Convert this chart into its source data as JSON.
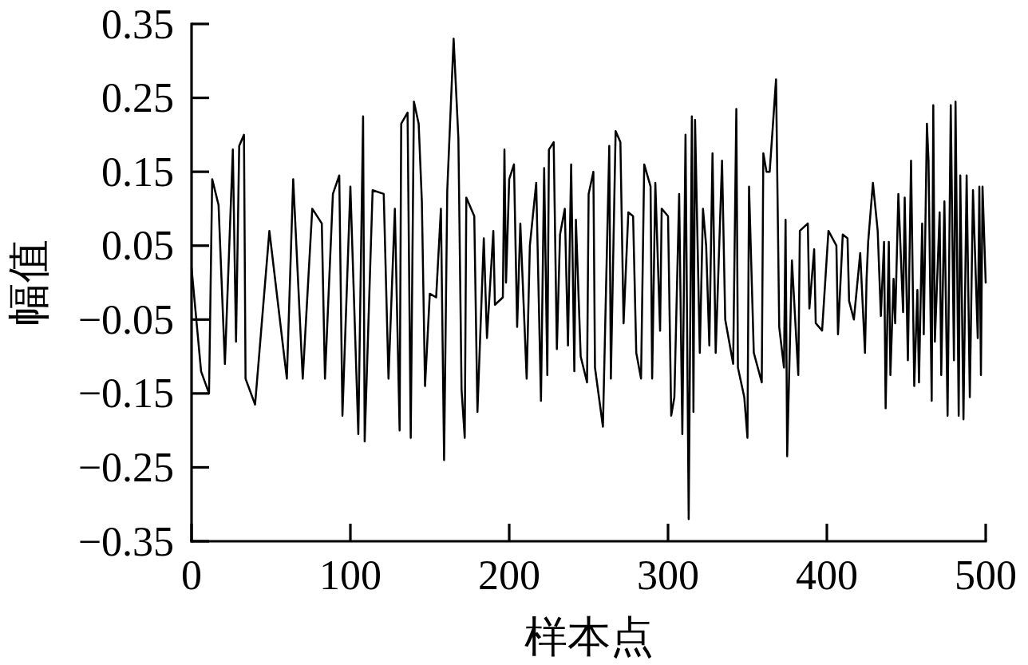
{
  "chart_data": {
    "type": "line",
    "xlabel": "样本点",
    "ylabel": "幅值",
    "color": "#000000",
    "line_style": "solid",
    "xlim": [
      0,
      500
    ],
    "ylim": [
      -0.35,
      0.35
    ],
    "xticks": [
      0,
      100,
      200,
      300,
      400,
      500
    ],
    "yticks": [
      -0.35,
      -0.25,
      -0.15,
      -0.05,
      0.05,
      0.15,
      0.25,
      0.35
    ],
    "x": [
      0,
      6,
      11,
      13,
      17,
      21,
      26,
      28,
      30,
      33,
      34,
      40,
      49,
      60,
      64,
      70,
      76,
      82,
      84,
      89,
      93,
      95,
      100,
      105,
      108,
      109,
      114,
      121,
      124,
      128,
      131,
      132,
      136,
      138,
      140,
      143,
      145,
      147,
      150,
      154,
      157,
      159,
      161,
      165,
      168,
      170,
      172,
      173,
      178,
      180,
      184,
      186,
      190,
      191,
      196,
      197,
      198,
      200,
      203,
      205,
      207,
      211,
      213,
      217,
      220,
      222,
      224,
      225,
      228,
      230,
      232,
      235,
      237,
      239,
      241,
      242,
      245,
      249,
      250,
      253,
      254,
      259,
      263,
      264,
      267,
      270,
      272,
      275,
      278,
      280,
      283,
      285,
      289,
      290,
      292,
      295,
      296,
      300,
      302,
      304,
      307,
      309,
      311,
      313,
      315,
      316,
      317,
      320,
      322,
      324,
      326,
      328,
      330,
      334,
      336,
      341,
      343,
      344,
      348,
      350,
      351,
      354,
      359,
      360,
      362,
      364,
      368,
      370,
      373,
      374,
      375,
      378,
      382,
      383,
      388,
      389,
      392,
      393,
      397,
      401,
      406,
      407,
      410,
      413,
      414,
      417,
      421,
      424,
      425,
      426,
      429,
      432,
      434,
      436,
      437,
      439,
      440,
      442,
      443,
      445,
      448,
      449,
      451,
      453,
      455,
      457,
      458,
      460,
      461,
      463,
      464,
      466,
      467,
      468,
      471,
      472,
      474,
      476,
      478,
      480,
      481,
      483,
      484,
      486,
      488,
      490,
      492,
      495,
      496,
      497,
      498,
      500
    ],
    "values": [
      0.02,
      -0.12,
      -0.15,
      0.14,
      0.105,
      -0.11,
      0.18,
      -0.08,
      0.185,
      0.2,
      -0.13,
      -0.165,
      0.07,
      -0.13,
      0.14,
      -0.13,
      0.1,
      0.08,
      -0.13,
      0.12,
      0.145,
      -0.18,
      0.13,
      -0.205,
      0.225,
      -0.215,
      0.125,
      0.12,
      -0.13,
      0.1,
      -0.2,
      0.215,
      0.23,
      -0.21,
      0.245,
      0.215,
      0.11,
      -0.14,
      -0.015,
      -0.02,
      0.1,
      -0.24,
      0.125,
      0.33,
      0.195,
      -0.145,
      -0.21,
      0.115,
      0.09,
      -0.175,
      0.06,
      -0.075,
      0.07,
      -0.03,
      -0.02,
      0.18,
      0,
      0.14,
      0.16,
      -0.06,
      0.08,
      -0.13,
      0.05,
      0.135,
      -0.16,
      0.155,
      -0.125,
      0.18,
      0.19,
      -0.09,
      0.065,
      0.1,
      -0.085,
      0.16,
      -0.12,
      0.085,
      -0.1,
      -0.135,
      0.12,
      0.15,
      -0.115,
      -0.195,
      0.185,
      -0.13,
      0.205,
      0.19,
      -0.055,
      0.095,
      0.09,
      -0.095,
      -0.13,
      0.16,
      0.13,
      -0.13,
      0.135,
      -0.065,
      0.1,
      0.09,
      -0.18,
      -0.155,
      0.12,
      -0.205,
      0.2,
      -0.32,
      0.225,
      -0.175,
      0.22,
      -0.095,
      0.1,
      0.05,
      -0.085,
      0.175,
      -0.095,
      0.165,
      -0.05,
      -0.11,
      0.235,
      -0.115,
      -0.155,
      -0.21,
      0.13,
      -0.095,
      -0.135,
      0.175,
      0.15,
      0.15,
      0.275,
      -0.06,
      -0.115,
      0.085,
      -0.235,
      0.03,
      -0.125,
      0.07,
      0.08,
      -0.035,
      0.045,
      -0.055,
      -0.065,
      0.07,
      0.05,
      -0.07,
      0.065,
      0.06,
      -0.025,
      -0.05,
      0.04,
      -0.095,
      0.005,
      0.055,
      0.135,
      0.07,
      -0.045,
      0.055,
      -0.17,
      0.055,
      -0.125,
      0.005,
      -0.055,
      0.12,
      -0.04,
      0.115,
      -0.105,
      0.165,
      -0.14,
      -0.01,
      -0.135,
      0.08,
      -0.07,
      0.215,
      0.165,
      -0.16,
      0.24,
      -0.08,
      0.095,
      -0.125,
      0.11,
      -0.18,
      0.24,
      -0.105,
      0.245,
      -0.18,
      0.145,
      -0.185,
      0.145,
      -0.155,
      0.125,
      -0.075,
      0.13,
      -0.125,
      0.13,
      0
    ]
  }
}
